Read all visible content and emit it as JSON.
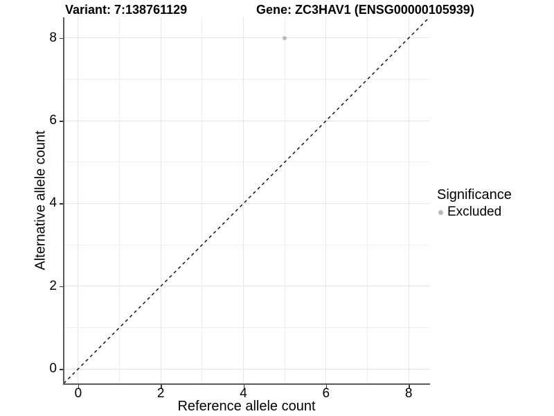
{
  "header": {
    "title_left": "Variant: 7:138761129",
    "title_right": "Gene: ZC3HAV1 (ENSG00000105939)"
  },
  "chart_data": {
    "type": "scatter",
    "title": "Variant: 7:138761129 | Gene: ZC3HAV1 (ENSG00000105939)",
    "xlabel": "Reference allele count",
    "ylabel": "Alternative allele count",
    "xlim": [
      -0.35,
      8.5
    ],
    "ylim": [
      -0.35,
      8.5
    ],
    "xticks": [
      0,
      2,
      4,
      6,
      8
    ],
    "yticks": [
      0,
      2,
      4,
      6,
      8
    ],
    "grid": {
      "on": true,
      "minor_every": 1,
      "major_every": 2,
      "legend_position": "right"
    },
    "reference_line": {
      "kind": "identity y=x",
      "style": "dashed",
      "from": -0.35,
      "to": 8.5
    },
    "series": [
      {
        "name": "Excluded",
        "points": [
          {
            "x": 5,
            "y": 8
          }
        ]
      }
    ],
    "legend": {
      "title": "Significance",
      "items": [
        {
          "label": "Excluded",
          "color": "#b9b9b9"
        }
      ]
    }
  },
  "style": {
    "grid_major_color": "#e4e4e4",
    "grid_minor_color": "#efefef",
    "axis_line_color": "#595959",
    "tick_color": "#333333",
    "text_color": "#000000",
    "point_color": "#b9b9b9",
    "reference_line_color": "#000000",
    "background": "#ffffff"
  }
}
